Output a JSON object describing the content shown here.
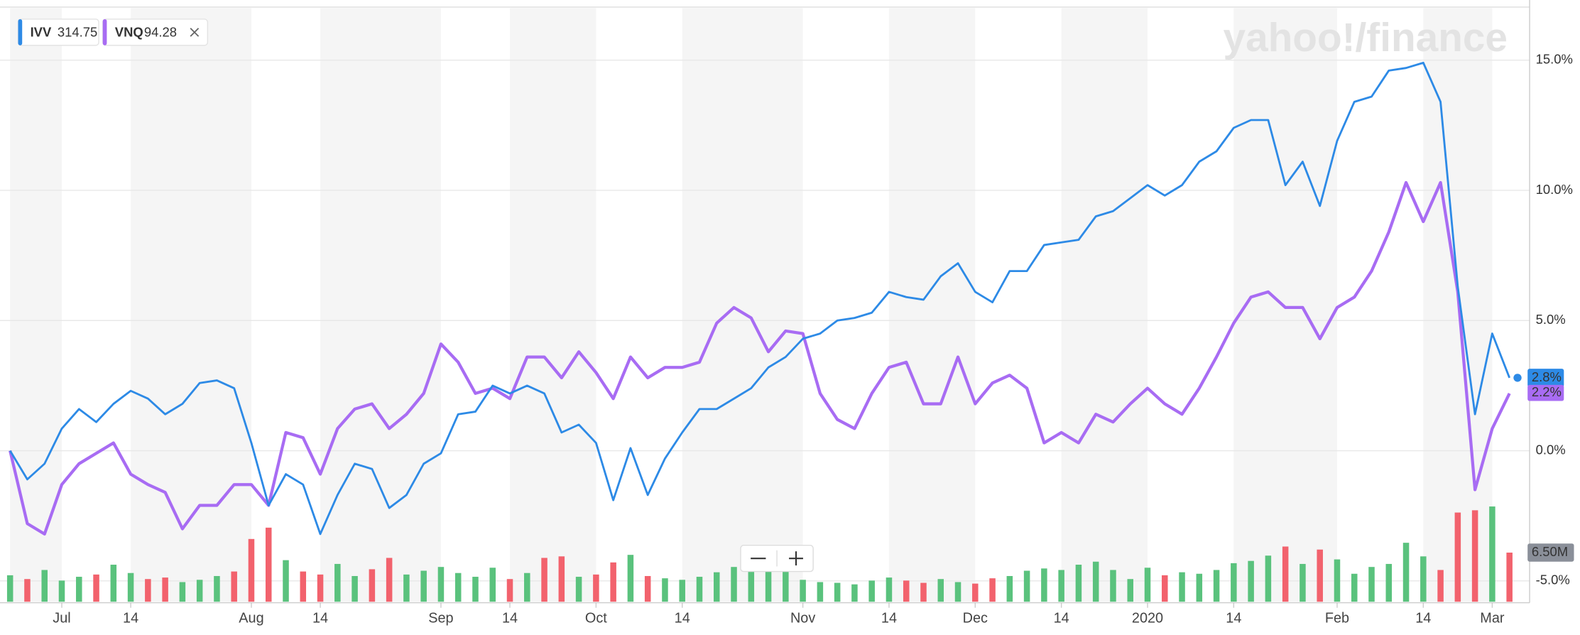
{
  "chart_data": {
    "type": "line",
    "watermark": "yahoo!/finance",
    "categories": [
      null,
      null,
      null,
      "Jul",
      null,
      null,
      null,
      "14",
      null,
      null,
      null,
      null,
      null,
      null,
      "Aug",
      null,
      null,
      null,
      "14",
      null,
      null,
      null,
      null,
      null,
      null,
      "Sep",
      null,
      null,
      null,
      "14",
      null,
      null,
      null,
      null,
      "Oct",
      null,
      null,
      null,
      null,
      "14",
      null,
      null,
      null,
      null,
      null,
      null,
      "Nov",
      null,
      null,
      null,
      null,
      "14",
      null,
      null,
      null,
      null,
      "Dec",
      null,
      null,
      null,
      null,
      "14",
      null,
      null,
      null,
      null,
      "2020",
      null,
      null,
      null,
      null,
      "14",
      null,
      null,
      null,
      null,
      null,
      "Feb",
      null,
      null,
      null,
      null,
      "14",
      null,
      null,
      null,
      "Mar",
      null
    ],
    "series": [
      {
        "name": "IVV",
        "price": "314.75",
        "color": "#2d8ae6",
        "end_label": "2.8%",
        "values": [
          0.0,
          -1.1,
          -0.5,
          0.85,
          1.6,
          1.1,
          1.8,
          2.3,
          2.0,
          1.4,
          1.8,
          2.6,
          2.7,
          2.4,
          0.3,
          -2.1,
          -0.9,
          -1.3,
          -3.2,
          -1.7,
          -0.5,
          -0.7,
          -2.2,
          -1.7,
          -0.5,
          -0.1,
          1.4,
          1.5,
          2.5,
          2.2,
          2.5,
          2.2,
          0.7,
          1.0,
          0.3,
          -1.9,
          0.1,
          -1.7,
          -0.3,
          0.7,
          1.6,
          1.6,
          2.0,
          2.4,
          3.2,
          3.6,
          4.3,
          4.5,
          5.0,
          5.1,
          5.3,
          6.1,
          5.9,
          5.8,
          6.7,
          7.2,
          6.1,
          5.7,
          6.9,
          6.9,
          7.9,
          8.0,
          8.1,
          9.0,
          9.2,
          9.7,
          10.2,
          9.8,
          10.2,
          11.1,
          11.5,
          12.4,
          12.7,
          12.7,
          10.2,
          11.1,
          9.4,
          11.9,
          13.4,
          13.6,
          14.6,
          14.7,
          14.9,
          13.4,
          6.3,
          1.4,
          4.5,
          2.8
        ]
      },
      {
        "name": "VNQ",
        "price": "94.28",
        "color": "#a86cf3",
        "end_label": "2.2%",
        "values": [
          0.0,
          -2.8,
          -3.2,
          -1.3,
          -0.5,
          -0.1,
          0.3,
          -0.9,
          -1.3,
          -1.6,
          -3.0,
          -2.1,
          -2.1,
          -1.3,
          -1.3,
          -2.1,
          0.7,
          0.5,
          -0.9,
          0.85,
          1.6,
          1.8,
          0.85,
          1.4,
          2.2,
          4.1,
          3.4,
          2.2,
          2.4,
          2.0,
          3.6,
          3.6,
          2.8,
          3.8,
          3.0,
          2.0,
          3.6,
          2.8,
          3.2,
          3.2,
          3.4,
          4.9,
          5.5,
          5.1,
          3.8,
          4.6,
          4.5,
          2.2,
          1.2,
          0.85,
          2.2,
          3.2,
          3.4,
          1.8,
          1.8,
          3.6,
          1.8,
          2.6,
          2.9,
          2.4,
          0.3,
          0.7,
          0.3,
          1.4,
          1.1,
          1.8,
          2.4,
          1.8,
          1.4,
          2.4,
          3.6,
          4.9,
          5.9,
          6.1,
          5.5,
          5.5,
          4.3,
          5.5,
          5.9,
          6.9,
          8.4,
          10.3,
          8.8,
          10.3,
          6.1,
          -1.5,
          0.85,
          2.2
        ]
      }
    ],
    "volume": {
      "up_color": "#5ac27d",
      "down_color": "#f2626d",
      "end_label": "6.50M",
      "values": [
        3.5,
        3.0,
        4.2,
        2.8,
        3.3,
        3.6,
        4.9,
        3.8,
        3.0,
        3.2,
        2.6,
        2.9,
        3.4,
        4.0,
        8.3,
        9.8,
        5.5,
        4.0,
        3.6,
        5.0,
        3.4,
        4.3,
        5.8,
        3.6,
        4.1,
        4.6,
        3.8,
        3.3,
        4.5,
        3.0,
        3.8,
        5.8,
        6.0,
        3.3,
        3.6,
        5.2,
        6.2,
        3.4,
        3.1,
        2.9,
        3.3,
        3.9,
        4.6,
        4.3,
        5.0,
        4.1,
        2.9,
        2.6,
        2.5,
        2.3,
        2.8,
        3.2,
        2.8,
        2.5,
        3.0,
        2.6,
        2.4,
        3.1,
        3.4,
        4.1,
        4.4,
        4.2,
        4.9,
        5.3,
        4.2,
        3.0,
        4.5,
        3.5,
        3.9,
        3.7,
        4.2,
        5.1,
        5.4,
        6.1,
        7.3,
        5.0,
        6.9,
        5.6,
        3.7,
        4.6,
        5.0,
        7.8,
        6.0,
        4.2,
        11.8,
        12.1,
        12.6,
        6.5
      ]
    },
    "ylim": [
      -5.8,
      17.0
    ],
    "yticks": [
      {
        "value": 15,
        "label": "15.0%"
      },
      {
        "value": 10,
        "label": "10.0%"
      },
      {
        "value": 5,
        "label": "5.0%"
      },
      {
        "value": 0,
        "label": "0.0%"
      },
      {
        "value": -5,
        "label": "-5.0%"
      }
    ],
    "grid": true
  }
}
